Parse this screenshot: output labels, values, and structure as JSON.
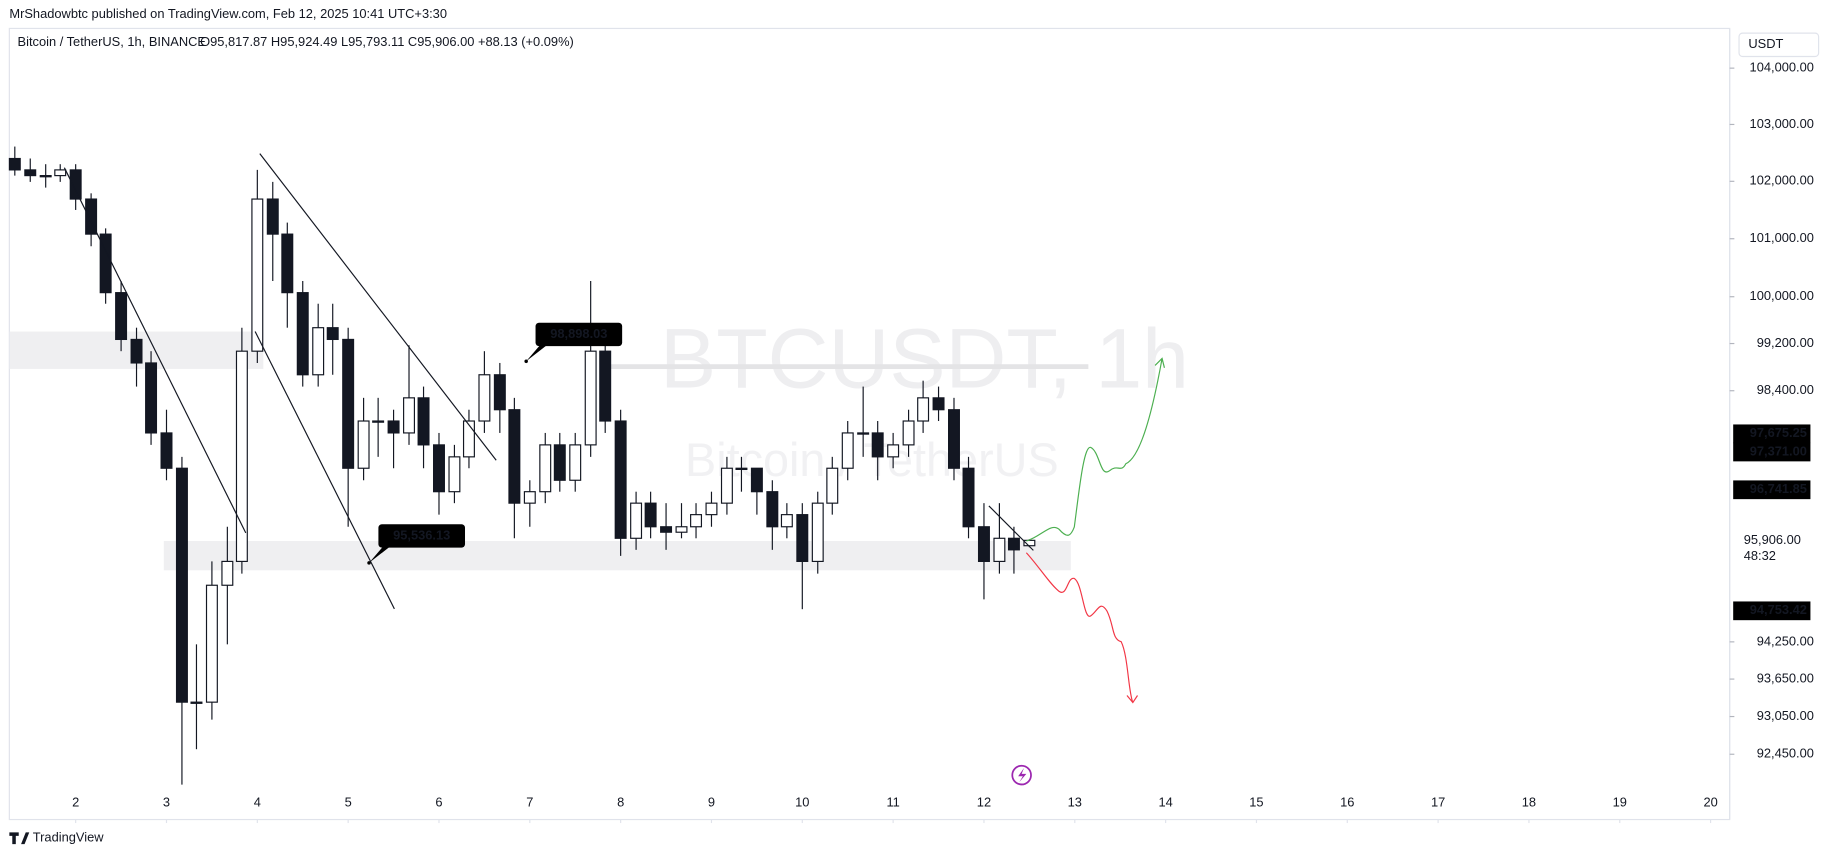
{
  "header": {
    "published": "MrShadowbtc published on TradingView.com, Feb 12, 2025 10:41 UTC+3:30",
    "brand": "TradingView"
  },
  "chart_data": {
    "type": "candlestick",
    "title": "Bitcoin / TetherUS, 1h, BINANCE",
    "ohlc_label": "O95,817.87 H95,924.49 L95,793.11 C95,906.00 +88.13 (+0.09%)",
    "currency": "USDT",
    "watermark": [
      "BTCUSDT, 1h",
      "Bitcoin / TetherUS"
    ],
    "log_scale": true,
    "xlim": [
      1.27,
      20.21
    ],
    "xticks": [
      2,
      3,
      4,
      5,
      6,
      7,
      8,
      9,
      10,
      11,
      12,
      13,
      14,
      15,
      16,
      17,
      18,
      19,
      20
    ],
    "ylim": [
      91420,
      104690
    ],
    "yticks": [
      {
        "value": 104000,
        "label": "104,000.00"
      },
      {
        "value": 103000,
        "label": "103,000.00"
      },
      {
        "value": 102000,
        "label": "102,000.00"
      },
      {
        "value": 101000,
        "label": "101,000.00"
      },
      {
        "value": 100000,
        "label": "100,000.00"
      },
      {
        "value": 99200,
        "label": "99,200.00"
      },
      {
        "value": 98400,
        "label": "98,400.00"
      },
      {
        "value": 94250,
        "label": "94,250.00"
      },
      {
        "value": 93650,
        "label": "93,650.00"
      },
      {
        "value": 93050,
        "label": "93,050.00"
      },
      {
        "value": 92450,
        "label": "92,450.00"
      }
    ],
    "price_labels": [
      {
        "value": 97675.25,
        "label": "97,675.25"
      },
      {
        "value": 97371.0,
        "label": "97,371.00"
      },
      {
        "value": 96741.85,
        "label": "96,741.85"
      },
      {
        "value": 94753.42,
        "label": "94,753.42"
      }
    ],
    "last_price": {
      "value": 95906.0,
      "label": "95,906.00",
      "countdown": "48:32"
    },
    "annotations": [
      {
        "x": 6.96,
        "value": 98898.03,
        "label": "98,898.03"
      },
      {
        "x": 5.23,
        "value": 95536.13,
        "label": "95,536.13"
      }
    ],
    "series": [
      {
        "name": "BTCUSDT",
        "x": [
          1.33,
          1.5,
          1.67,
          1.83,
          2,
          2.17,
          2.33,
          2.5,
          2.67,
          2.83,
          3,
          3.17,
          3.33,
          3.5,
          3.67,
          3.83,
          4,
          4.17,
          4.33,
          4.5,
          4.67,
          4.83,
          5,
          5.17,
          5.33,
          5.5,
          5.67,
          5.83,
          6,
          6.17,
          6.33,
          6.5,
          6.67,
          6.83,
          7,
          7.17,
          7.33,
          7.5,
          7.67,
          7.83,
          8,
          8.17,
          8.33,
          8.5,
          8.67,
          8.83,
          9,
          9.17,
          9.33,
          9.5,
          9.67,
          9.83,
          10,
          10.17,
          10.33,
          10.5,
          10.67,
          10.83,
          11,
          11.17,
          11.33,
          11.5,
          11.67,
          11.83,
          12,
          12.17,
          12.33,
          12.5
        ],
        "open": [
          102400,
          102200,
          102100,
          102100,
          102200,
          101690,
          101080,
          100070,
          99270,
          98870,
          97690,
          97100,
          93280,
          93280,
          95170,
          95560,
          99070,
          101690,
          101080,
          100070,
          98670,
          99470,
          99270,
          97100,
          97890,
          97890,
          97690,
          98280,
          97490,
          96710,
          97290,
          97890,
          98670,
          98080,
          96520,
          96710,
          97490,
          96900,
          97490,
          99070,
          97890,
          95940,
          96520,
          96130,
          96040,
          96130,
          96330,
          96520,
          97100,
          97100,
          96710,
          96130,
          96330,
          95560,
          96520,
          97100,
          97690,
          97690,
          97290,
          97490,
          97890,
          98280,
          98080,
          97100,
          96130,
          95560,
          95940,
          95817.87
        ],
        "high": [
          102610,
          102400,
          102300,
          102300,
          102300,
          101790,
          101180,
          100270,
          99470,
          99070,
          98080,
          97290,
          94210,
          95560,
          96130,
          99470,
          102200,
          101990,
          101280,
          100270,
          99880,
          99880,
          99470,
          98280,
          98280,
          98080,
          99170,
          98470,
          97690,
          97490,
          98080,
          99070,
          98870,
          98280,
          96900,
          97690,
          97690,
          97690,
          100270,
          99270,
          98080,
          96710,
          96710,
          96520,
          96520,
          96520,
          96710,
          97290,
          97290,
          97100,
          96900,
          96520,
          96520,
          96710,
          97290,
          97890,
          98470,
          97890,
          97690,
          98080,
          98570,
          98470,
          98280,
          97290,
          96520,
          96520,
          96130,
          95924.49
        ],
        "low": [
          102100,
          101990,
          101890,
          101990,
          101500,
          100870,
          99880,
          99070,
          98470,
          97490,
          96900,
          91970,
          92530,
          93000,
          94210,
          95360,
          98870,
          100270,
          99470,
          98470,
          98470,
          98670,
          96130,
          96900,
          97290,
          97100,
          97490,
          97100,
          96330,
          96520,
          97100,
          97690,
          97690,
          95940,
          96130,
          96520,
          96710,
          96710,
          97290,
          97690,
          95650,
          95750,
          95940,
          95750,
          95940,
          95940,
          96130,
          96330,
          96710,
          96330,
          95750,
          95940,
          94780,
          95360,
          96330,
          96900,
          97290,
          96900,
          97100,
          97290,
          97690,
          97890,
          96900,
          95940,
          94940,
          95360,
          95360,
          95793.11
        ],
        "close": [
          102200,
          102100,
          102100,
          102200,
          101690,
          101080,
          100070,
          99270,
          98870,
          97690,
          97100,
          93280,
          93280,
          95170,
          95560,
          99070,
          101690,
          101080,
          100070,
          98670,
          99470,
          99270,
          97100,
          97890,
          97890,
          97690,
          98280,
          97490,
          96710,
          97290,
          97890,
          98670,
          98080,
          96520,
          96710,
          97490,
          96900,
          97490,
          99070,
          97890,
          95940,
          96520,
          96130,
          96040,
          96130,
          96330,
          96520,
          97100,
          97100,
          96710,
          96130,
          96330,
          95560,
          96520,
          97100,
          97690,
          97690,
          97290,
          97490,
          97890,
          98280,
          98080,
          97100,
          96130,
          95560,
          95940,
          95750,
          95906.0
        ]
      }
    ]
  }
}
